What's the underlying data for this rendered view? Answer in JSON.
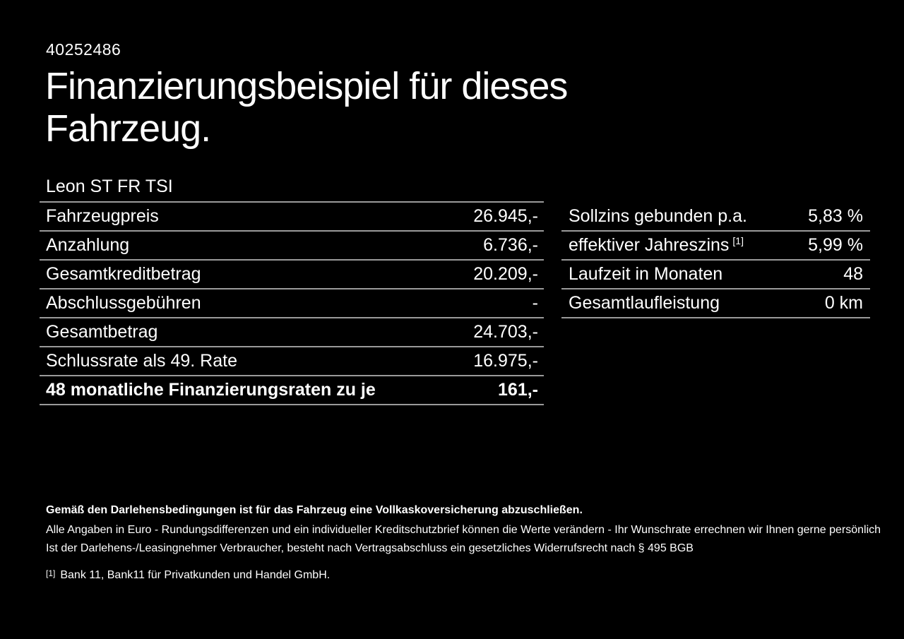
{
  "page": {
    "background_color": "#000000",
    "text_color": "#ffffff",
    "divider_color": "#9a9a9a"
  },
  "header": {
    "vehicle_id": "40252486",
    "title": "Finanzierungsbeispiel für dieses Fahrzeug.",
    "vehicle_model": "Leon ST FR TSI"
  },
  "finance_table": {
    "rows": [
      {
        "label": "Fahrzeugpreis",
        "value": "26.945,-"
      },
      {
        "label": "Anzahlung",
        "value": "6.736,-"
      },
      {
        "label": "Gesamtkreditbetrag",
        "value": "20.209,-"
      },
      {
        "label": "Abschlussgebühren",
        "value": "-"
      },
      {
        "label": "Gesamtbetrag",
        "value": "24.703,-"
      },
      {
        "label": "Schlussrate als 49. Rate",
        "value": "16.975,-"
      },
      {
        "label": "48 monatliche Finanzierungsraten zu je",
        "value": "161,-"
      }
    ]
  },
  "conditions_table": {
    "rows": [
      {
        "label": "Sollzins gebunden p.a.",
        "value": "5,83 %"
      },
      {
        "label": "effektiver Jahreszins",
        "footnote_marker": "[1]",
        "value": "5,99 %"
      },
      {
        "label": "Laufzeit in Monaten",
        "value": "48"
      },
      {
        "label": "Gesamtlaufleistung",
        "value": "0 km"
      }
    ]
  },
  "footer": {
    "insurance_note": "Gemäß den Darlehensbedingungen ist für das Fahrzeug eine Vollkaskoversicherung abzuschließen.",
    "disclaimer_line1": "Alle Angaben in Euro - Rundungsdifferenzen und ein individueller Kreditschutzbrief können die Werte verändern - Ihr Wunschrate errechnen wir Ihnen gerne persönlich",
    "disclaimer_line2": "Ist der Darlehens-/Leasingnehmer Verbraucher, besteht nach Vertragsabschluss ein gesetzliches Widerrufsrecht nach § 495 BGB",
    "footnote_marker": "[1]",
    "footnote_text": "Bank 11, Bank11 für Privatkunden und Handel GmbH."
  }
}
